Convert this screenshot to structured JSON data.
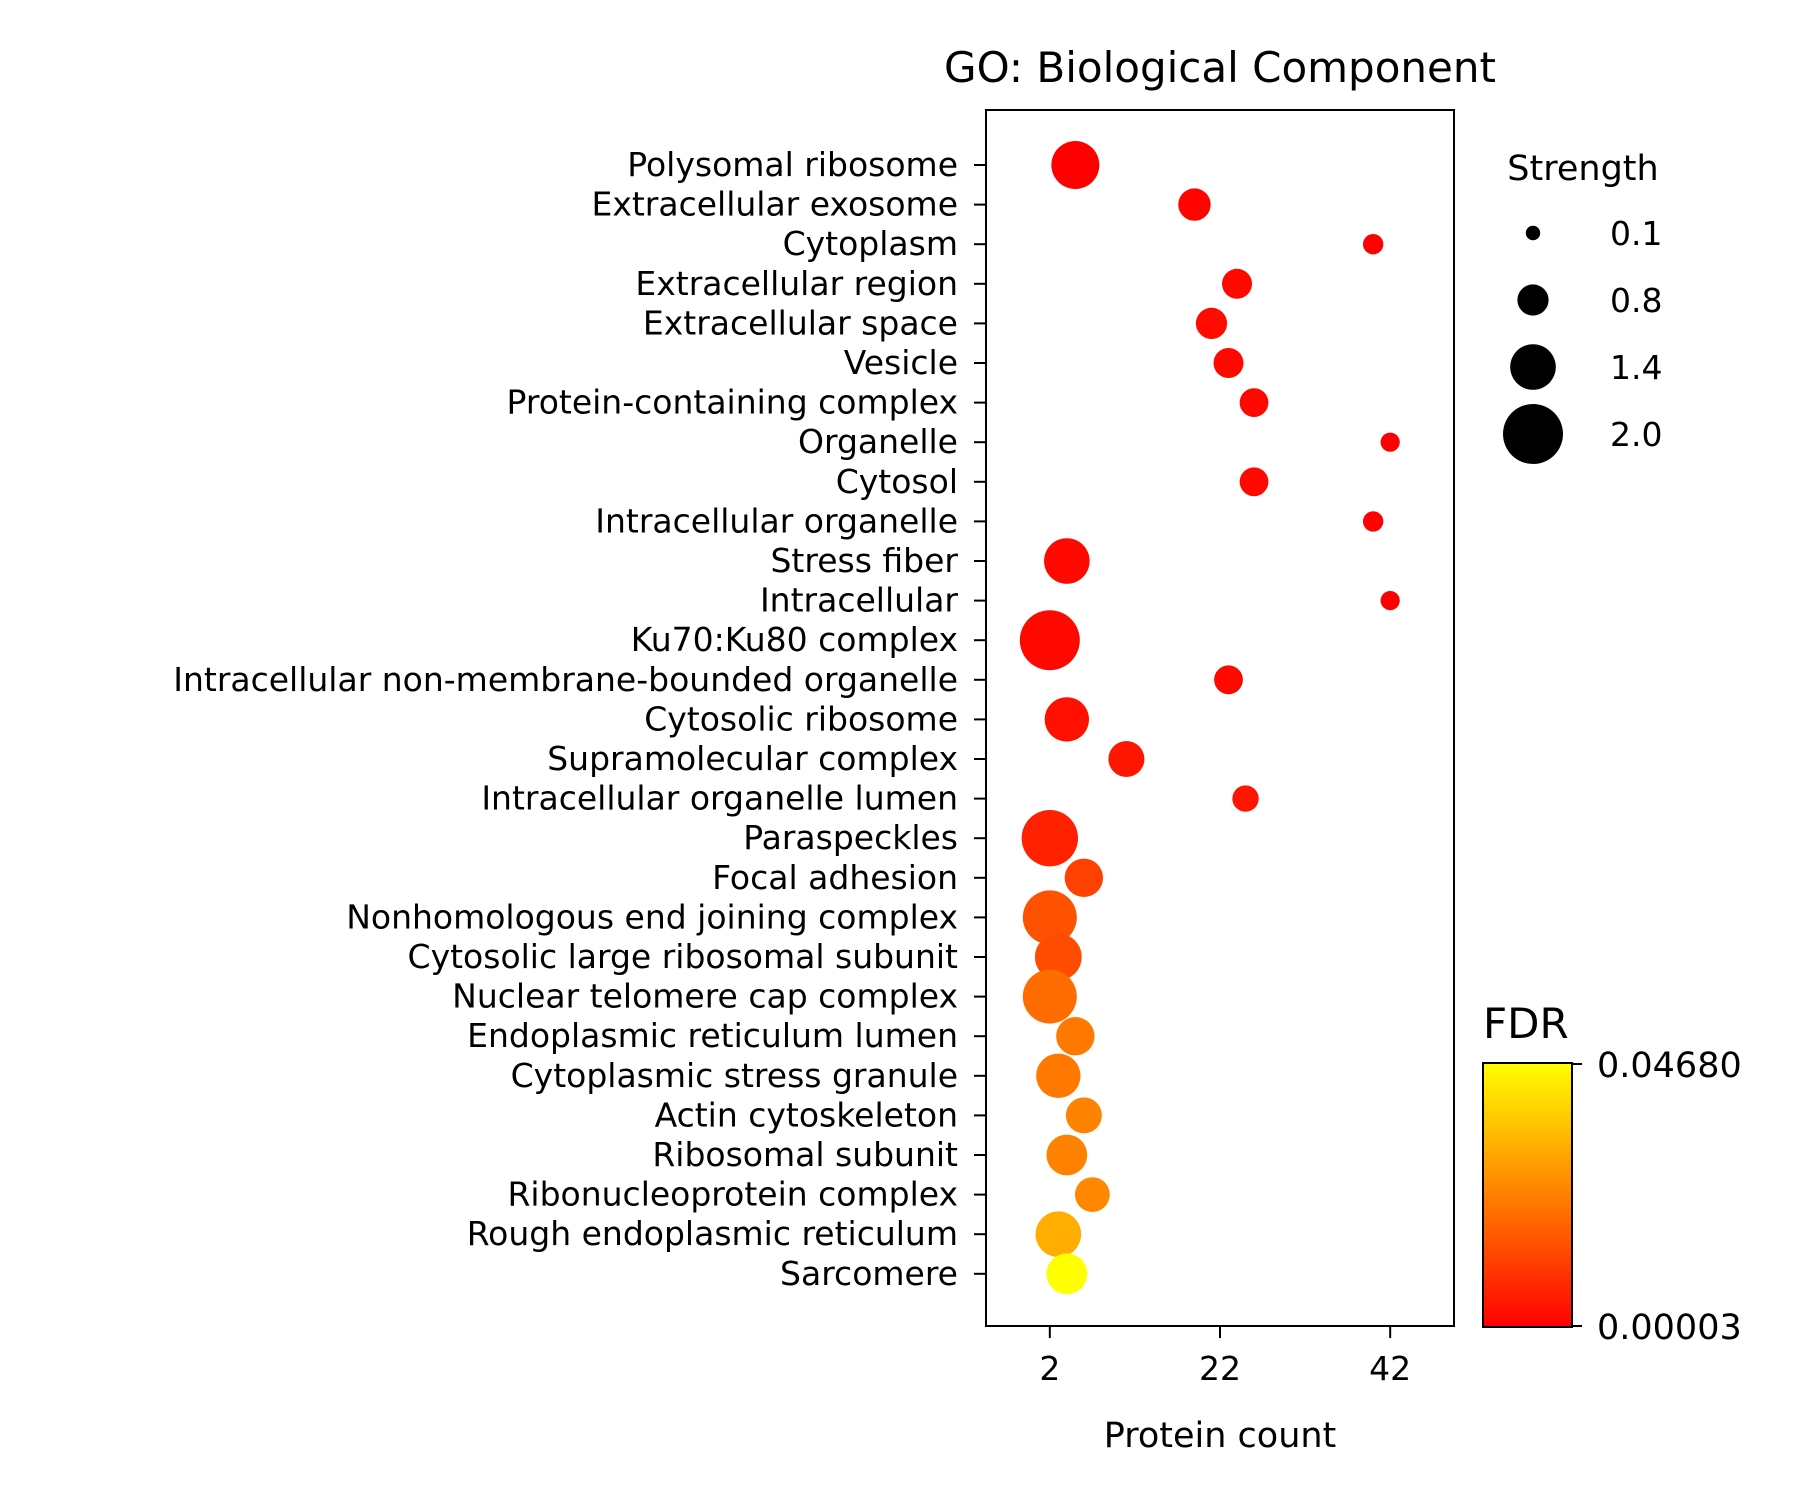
{
  "chart_data": {
    "type": "scatter",
    "title": "GO: Biological Component",
    "xlabel": "Protein count",
    "ylabel": "",
    "xlim": [
      -5.5,
      49.5
    ],
    "xticks": [
      2,
      22,
      42
    ],
    "grid": false,
    "categories": [
      "Polysomal ribosome",
      "Extracellular exosome",
      "Cytoplasm",
      "Extracellular region",
      "Extracellular space",
      "Vesicle",
      "Protein-containing complex",
      "Organelle",
      "Cytosol",
      "Intracellular organelle",
      "Stress fiber",
      "Intracellular",
      "Ku70:Ku80 complex",
      "Intracellular non-membrane-bounded organelle",
      "Cytosolic ribosome",
      "Supramolecular complex",
      "Intracellular organelle lumen",
      "Paraspeckles",
      "Focal adhesion",
      "Nonhomologous end joining complex",
      "Cytosolic large ribosomal subunit",
      "Nuclear telomere cap complex",
      "Endoplasmic reticulum lumen",
      "Cytoplasmic stress granule",
      "Actin cytoskeleton",
      "Ribosomal subunit",
      "Ribonucleoprotein complex",
      "Rough endoplasmic reticulum",
      "Sarcomere"
    ],
    "protein_count": [
      5,
      19,
      40,
      24,
      21,
      23,
      26,
      42,
      26,
      40,
      4,
      42,
      2,
      23,
      4,
      11,
      25,
      2,
      6,
      2,
      3,
      2,
      5,
      3,
      6,
      4,
      7,
      3,
      4
    ],
    "strength": [
      1.5,
      0.85,
      0.35,
      0.75,
      0.8,
      0.75,
      0.7,
      0.3,
      0.7,
      0.35,
      1.4,
      0.3,
      2.0,
      0.7,
      1.35,
      1.0,
      0.6,
      1.85,
      1.1,
      1.75,
      1.45,
      1.75,
      1.1,
      1.35,
      1.0,
      1.2,
      0.95,
      1.4,
      1.2
    ],
    "fdr": [
      3e-05,
      0.0008,
      0.0002,
      0.0015,
      0.002,
      0.0015,
      0.0015,
      3e-05,
      0.0015,
      0.0002,
      0.0015,
      3e-05,
      0.0015,
      0.0015,
      0.003,
      0.004,
      0.004,
      0.006,
      0.012,
      0.015,
      0.014,
      0.02,
      0.022,
      0.022,
      0.024,
      0.024,
      0.025,
      0.032,
      0.0468
    ],
    "size_legend": {
      "title": "Strength",
      "values": [
        "0.1",
        "0.8",
        "1.4",
        "2.0"
      ]
    },
    "colorbar": {
      "title": "FDR",
      "min_label": "0.00003",
      "max_label": "0.04680",
      "min": 3e-05,
      "max": 0.0468,
      "colors": [
        "#ff0000",
        "#ffff00"
      ]
    }
  }
}
